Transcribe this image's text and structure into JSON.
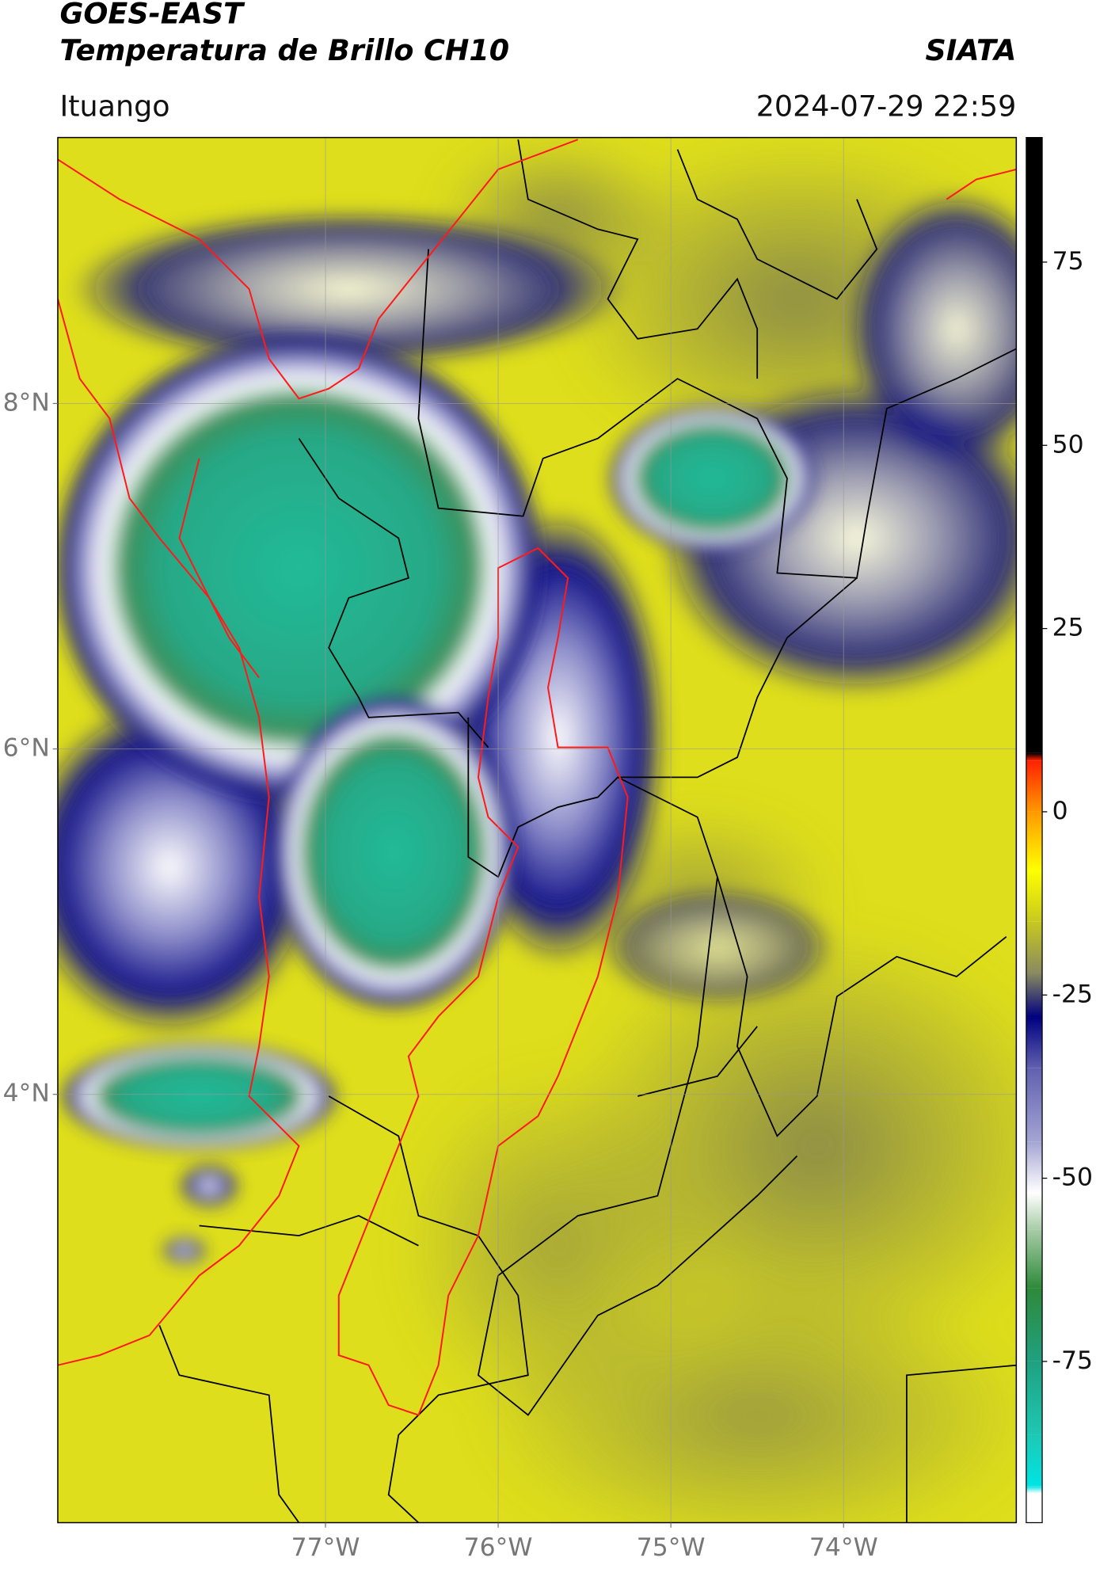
{
  "chart_data": {
    "type": "map",
    "title": "GOES-EAST",
    "subtitle": "Temperatura de Brillo CH10",
    "source": "SIATA",
    "location": "Ituango",
    "datetime": "2024-07-29 22:59",
    "xlim": [
      -78.55,
      -73.0
    ],
    "ylim": [
      1.52,
      9.54
    ],
    "xticks": [
      {
        "value": -77,
        "label": "77°W"
      },
      {
        "value": -76,
        "label": "76°W"
      },
      {
        "value": -75,
        "label": "75°W"
      },
      {
        "value": -74,
        "label": "74°W"
      }
    ],
    "yticks": [
      {
        "value": 8,
        "label": "8°N"
      },
      {
        "value": 6,
        "label": "6°N"
      },
      {
        "value": 4,
        "label": "4°N"
      }
    ],
    "grid": true,
    "colorbar": {
      "lim": [
        -97,
        92
      ],
      "ticks": [
        75,
        50,
        25,
        0,
        -25,
        -50,
        -75
      ],
      "stops": [
        {
          "value": -97,
          "color": "#ffffff"
        },
        {
          "value": -93,
          "color": "#ffffff"
        },
        {
          "value": -92,
          "color": "#00e4e4"
        },
        {
          "value": -85,
          "color": "#1ec8b4"
        },
        {
          "value": -75,
          "color": "#20a080"
        },
        {
          "value": -65,
          "color": "#2e8a3a"
        },
        {
          "value": -57,
          "color": "#a8cca8"
        },
        {
          "value": -52,
          "color": "#ffffff"
        },
        {
          "value": -45,
          "color": "#a4a4d4"
        },
        {
          "value": -35,
          "color": "#6060b0"
        },
        {
          "value": -28,
          "color": "#000080"
        },
        {
          "value": -22,
          "color": "#8a8a60"
        },
        {
          "value": -15,
          "color": "#c8c820"
        },
        {
          "value": -8,
          "color": "#ffff00"
        },
        {
          "value": 0,
          "color": "#ff9900"
        },
        {
          "value": 7,
          "color": "#ff2000"
        },
        {
          "value": 8,
          "color": "#000000"
        },
        {
          "value": 92,
          "color": "#000000"
        }
      ]
    }
  }
}
